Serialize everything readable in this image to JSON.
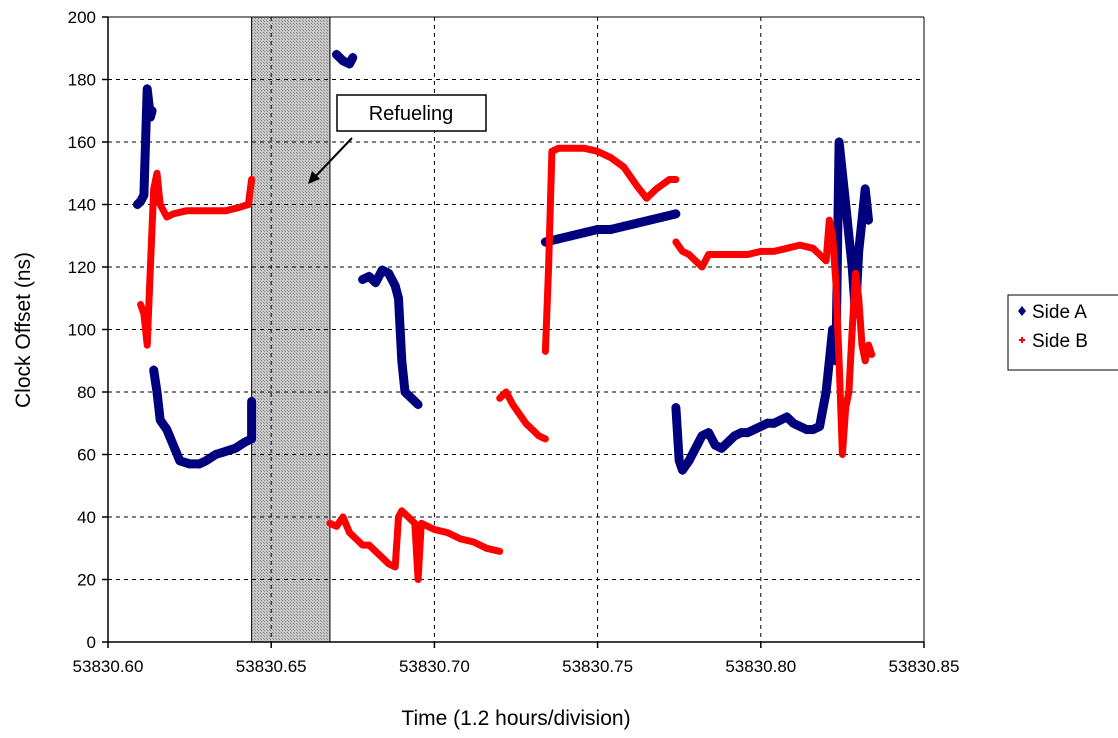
{
  "chart_data": {
    "type": "scatter",
    "title": "",
    "xlabel": "Time (1.2 hours/division)",
    "ylabel": "Clock Offset (ns)",
    "xlim": [
      53830.6,
      53830.85
    ],
    "ylim": [
      0,
      200
    ],
    "xticks": [
      53830.6,
      53830.65,
      53830.7,
      53830.75,
      53830.8,
      53830.85
    ],
    "xtick_labels": [
      "53830.60",
      "53830.65",
      "53830.70",
      "53830.75",
      "53830.80",
      "53830.85"
    ],
    "yticks": [
      0,
      20,
      40,
      60,
      80,
      100,
      120,
      140,
      160,
      180,
      200
    ],
    "ytick_labels": [
      "0",
      "20",
      "40",
      "60",
      "80",
      "100",
      "120",
      "140",
      "160",
      "180",
      "200"
    ],
    "grid": true,
    "legend_position": "right",
    "shaded_region": {
      "x": [
        53830.644,
        53830.668
      ]
    },
    "annotation": {
      "text": "Refueling",
      "points_to": {
        "x": 53830.661,
        "y": 148
      }
    },
    "series": [
      {
        "name": "Side A",
        "color": "#00007f",
        "marker": "diamond",
        "segments": [
          [
            [
              53830.609,
              140
            ],
            [
              53830.61,
              141
            ],
            [
              53830.611,
              143
            ],
            [
              53830.612,
              177
            ],
            [
              53830.613,
              168
            ],
            [
              53830.6135,
              170
            ]
          ],
          [
            [
              53830.614,
              87
            ],
            [
              53830.615,
              80
            ],
            [
              53830.616,
              71
            ],
            [
              53830.618,
              68
            ],
            [
              53830.62,
              63
            ],
            [
              53830.622,
              58
            ],
            [
              53830.625,
              57
            ],
            [
              53830.628,
              57
            ],
            [
              53830.63,
              58
            ],
            [
              53830.633,
              60
            ],
            [
              53830.636,
              61
            ],
            [
              53830.639,
              62
            ],
            [
              53830.642,
              64
            ],
            [
              53830.644,
              65
            ],
            [
              53830.644,
              77
            ]
          ],
          [
            [
              53830.67,
              188
            ],
            [
              53830.672,
              186
            ],
            [
              53830.674,
              185
            ],
            [
              53830.675,
              187
            ]
          ],
          [
            [
              53830.678,
              116
            ],
            [
              53830.68,
              117
            ],
            [
              53830.682,
              115
            ],
            [
              53830.684,
              119
            ],
            [
              53830.686,
              118
            ],
            [
              53830.688,
              114
            ],
            [
              53830.689,
              110
            ],
            [
              53830.69,
              90
            ],
            [
              53830.691,
              80
            ],
            [
              53830.693,
              78
            ],
            [
              53830.694,
              77
            ],
            [
              53830.695,
              76
            ]
          ],
          [
            [
              53830.734,
              128
            ],
            [
              53830.738,
              129
            ],
            [
              53830.742,
              130
            ],
            [
              53830.746,
              131
            ],
            [
              53830.75,
              132
            ],
            [
              53830.754,
              132
            ],
            [
              53830.758,
              133
            ],
            [
              53830.762,
              134
            ],
            [
              53830.766,
              135
            ],
            [
              53830.77,
              136
            ],
            [
              53830.774,
              137
            ]
          ],
          [
            [
              53830.774,
              75
            ],
            [
              53830.775,
              58
            ],
            [
              53830.776,
              55
            ],
            [
              53830.778,
              58
            ],
            [
              53830.78,
              62
            ],
            [
              53830.782,
              66
            ],
            [
              53830.784,
              67
            ],
            [
              53830.786,
              63
            ],
            [
              53830.788,
              62
            ],
            [
              53830.79,
              64
            ],
            [
              53830.792,
              66
            ],
            [
              53830.794,
              67
            ],
            [
              53830.796,
              67
            ],
            [
              53830.798,
              68
            ],
            [
              53830.8,
              69
            ],
            [
              53830.802,
              70
            ],
            [
              53830.804,
              70
            ],
            [
              53830.806,
              71
            ],
            [
              53830.808,
              72
            ],
            [
              53830.81,
              70
            ],
            [
              53830.812,
              69
            ],
            [
              53830.814,
              68
            ],
            [
              53830.816,
              68
            ],
            [
              53830.818,
              69
            ],
            [
              53830.82,
              80
            ],
            [
              53830.822,
              100
            ],
            [
              53830.823,
              90
            ],
            [
              53830.824,
              160
            ],
            [
              53830.825,
              150
            ],
            [
              53830.826,
              140
            ],
            [
              53830.827,
              130
            ],
            [
              53830.828,
              120
            ],
            [
              53830.829,
              105
            ],
            [
              53830.83,
              125
            ],
            [
              53830.831,
              135
            ],
            [
              53830.832,
              145
            ],
            [
              53830.833,
              135
            ]
          ]
        ]
      },
      {
        "name": "Side B",
        "color": "#ff0000",
        "marker": "cross",
        "segments": [
          [
            [
              53830.61,
              108
            ],
            [
              53830.611,
              105
            ],
            [
              53830.612,
              95
            ],
            [
              53830.613,
              120
            ],
            [
              53830.614,
              145
            ],
            [
              53830.615,
              150
            ],
            [
              53830.616,
              140
            ],
            [
              53830.618,
              136
            ],
            [
              53830.62,
              137
            ],
            [
              53830.624,
              138
            ],
            [
              53830.628,
              138
            ],
            [
              53830.632,
              138
            ],
            [
              53830.636,
              138
            ],
            [
              53830.64,
              139
            ],
            [
              53830.643,
              140
            ],
            [
              53830.644,
              148
            ]
          ],
          [
            [
              53830.668,
              38
            ],
            [
              53830.67,
              37
            ],
            [
              53830.672,
              40
            ],
            [
              53830.674,
              35
            ],
            [
              53830.676,
              33
            ],
            [
              53830.678,
              31
            ],
            [
              53830.68,
              31
            ],
            [
              53830.682,
              29
            ],
            [
              53830.684,
              27
            ],
            [
              53830.686,
              25
            ],
            [
              53830.688,
              24
            ],
            [
              53830.689,
              40
            ],
            [
              53830.69,
              42
            ],
            [
              53830.692,
              40
            ],
            [
              53830.694,
              38
            ],
            [
              53830.695,
              20
            ],
            [
              53830.696,
              38
            ],
            [
              53830.7,
              36
            ],
            [
              53830.704,
              35
            ],
            [
              53830.708,
              33
            ],
            [
              53830.712,
              32
            ],
            [
              53830.716,
              30
            ],
            [
              53830.72,
              29
            ]
          ],
          [
            [
              53830.72,
              78
            ],
            [
              53830.722,
              80
            ],
            [
              53830.724,
              76
            ],
            [
              53830.726,
              73
            ],
            [
              53830.728,
              70
            ],
            [
              53830.73,
              68
            ],
            [
              53830.732,
              66
            ],
            [
              53830.734,
              65
            ]
          ],
          [
            [
              53830.734,
              93
            ],
            [
              53830.735,
              120
            ],
            [
              53830.736,
              157
            ],
            [
              53830.738,
              158
            ],
            [
              53830.742,
              158
            ],
            [
              53830.746,
              158
            ],
            [
              53830.75,
              157
            ],
            [
              53830.754,
              155
            ],
            [
              53830.758,
              152
            ],
            [
              53830.762,
              146
            ],
            [
              53830.765,
              142
            ],
            [
              53830.768,
              145
            ],
            [
              53830.772,
              148
            ],
            [
              53830.774,
              148
            ]
          ],
          [
            [
              53830.774,
              128
            ],
            [
              53830.776,
              125
            ],
            [
              53830.778,
              124
            ],
            [
              53830.78,
              122
            ],
            [
              53830.782,
              120
            ],
            [
              53830.784,
              124
            ],
            [
              53830.788,
              124
            ],
            [
              53830.792,
              124
            ],
            [
              53830.796,
              124
            ],
            [
              53830.8,
              125
            ],
            [
              53830.804,
              125
            ],
            [
              53830.808,
              126
            ],
            [
              53830.812,
              127
            ],
            [
              53830.816,
              126
            ],
            [
              53830.818,
              124
            ],
            [
              53830.82,
              122
            ],
            [
              53830.821,
              135
            ],
            [
              53830.822,
              130
            ],
            [
              53830.823,
              115
            ],
            [
              53830.824,
              90
            ],
            [
              53830.825,
              60
            ],
            [
              53830.826,
              75
            ],
            [
              53830.827,
              80
            ],
            [
              53830.828,
              100
            ],
            [
              53830.829,
              118
            ],
            [
              53830.83,
              110
            ],
            [
              53830.831,
              95
            ],
            [
              53830.832,
              90
            ],
            [
              53830.833,
              95
            ],
            [
              53830.834,
              92
            ]
          ]
        ]
      }
    ]
  }
}
